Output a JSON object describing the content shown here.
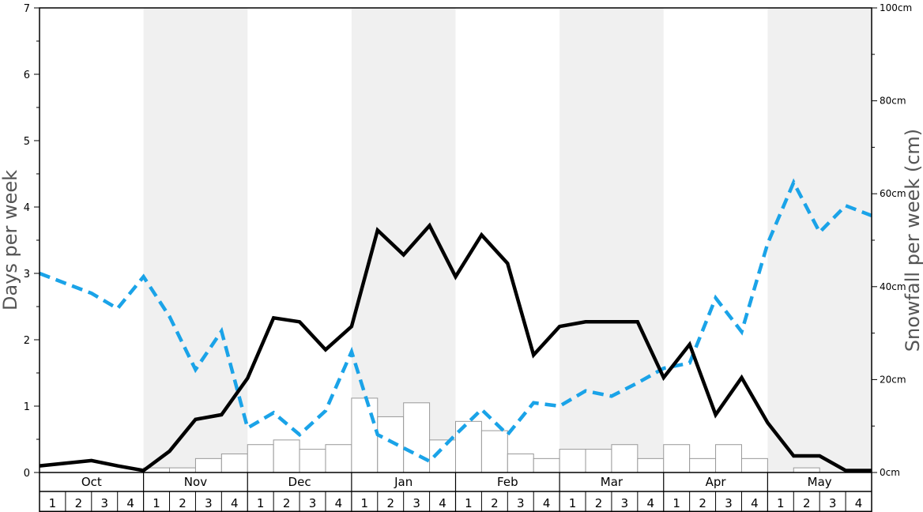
{
  "chart_data": {
    "type": "bar+line",
    "ylabel": "Days per week",
    "y2label": "Snowfall per week (cm)",
    "ylim": [
      0,
      7
    ],
    "y2lim": [
      0,
      100
    ],
    "y_ticks": [
      "0",
      "1",
      "2",
      "3",
      "4",
      "5",
      "6",
      "7"
    ],
    "y2_ticks": [
      "0cm",
      "20cm",
      "40cm",
      "60cm",
      "80cm",
      "100cm"
    ],
    "months": [
      "Oct",
      "Nov",
      "Dec",
      "Jan",
      "Feb",
      "Mar",
      "Apr",
      "May"
    ],
    "weeks": [
      "1",
      "2",
      "3",
      "4"
    ],
    "shaded_months": [
      "Nov",
      "Jan",
      "Mar",
      "May"
    ],
    "colors": {
      "shade": "#f0f0f0",
      "solid_line": "#000000",
      "dashed_line": "#1aa3e8",
      "bar_fill": "#ffffff",
      "bar_stroke": "#999999"
    },
    "snowfall_bars_cm": [
      0,
      0,
      0,
      0,
      1,
      1,
      3,
      4,
      6,
      7,
      5,
      6,
      16,
      12,
      15,
      7,
      11,
      9,
      4,
      3,
      5,
      5,
      6,
      3,
      6,
      3,
      6,
      3,
      0,
      1,
      0,
      0
    ],
    "solid_line_days": [
      0.1,
      0.14,
      0.18,
      0.1,
      0.03,
      0.32,
      0.8,
      0.87,
      1.42,
      2.33,
      2.27,
      1.85,
      2.2,
      3.65,
      3.28,
      3.72,
      2.95,
      3.58,
      3.15,
      1.77,
      2.2,
      2.27,
      2.27,
      2.27,
      1.43,
      1.93,
      0.87,
      1.43,
      0.75,
      0.25,
      0.25,
      0.03,
      0.03
    ],
    "dashed_line_days": [
      3.0,
      2.85,
      2.7,
      2.47,
      2.95,
      2.35,
      1.55,
      2.13,
      0.67,
      0.9,
      0.57,
      0.93,
      1.82,
      0.57,
      0.37,
      0.17,
      0.57,
      0.95,
      0.57,
      1.05,
      1.0,
      1.23,
      1.15,
      1.35,
      1.57,
      1.65,
      2.63,
      2.12,
      3.45,
      4.37,
      3.62,
      4.02,
      3.87
    ]
  }
}
